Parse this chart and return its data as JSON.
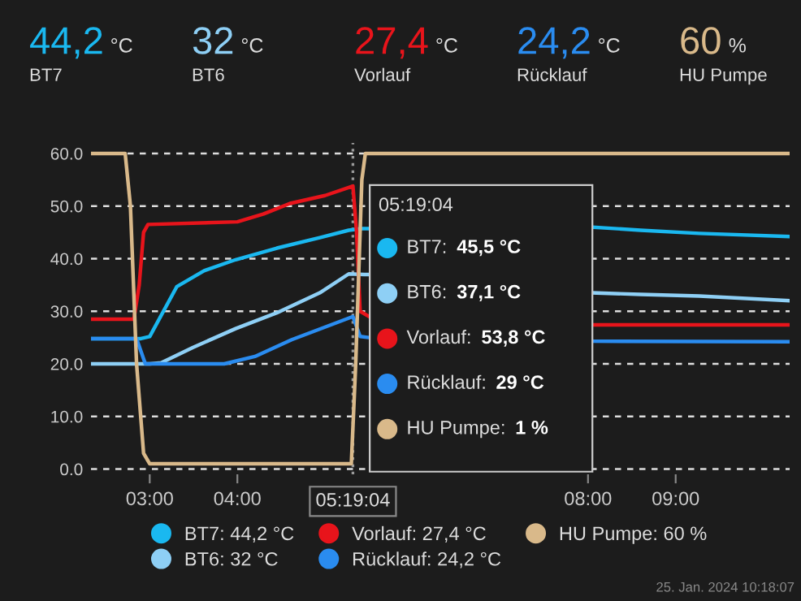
{
  "chart_data": {
    "type": "line",
    "series": [
      {
        "name": "BT7: 44,2 °C",
        "color": "#1ab8f0",
        "x": [
          2.33,
          2.9,
          3.0,
          3.31,
          3.62,
          3.98,
          4.45,
          4.94,
          5.27,
          5.42,
          5.5,
          6.8,
          8.05,
          8.6,
          9.27,
          10.3
        ],
        "values": [
          24.8,
          24.8,
          25.2,
          34.7,
          37.7,
          39.8,
          42,
          44,
          45.4,
          45.7,
          45.7,
          null,
          46,
          45.4,
          44.8,
          44.2
        ]
      },
      {
        "name": "BT6: 32 °C",
        "color": "#8ecff5",
        "x": [
          2.33,
          3.0,
          3.13,
          3.49,
          3.98,
          4.45,
          4.94,
          5.27,
          5.45,
          5.5,
          6.8,
          8.05,
          8.6,
          9.27,
          10.3
        ],
        "values": [
          20,
          20,
          20.2,
          23.1,
          26.7,
          29.7,
          33.5,
          37.1,
          37,
          37,
          null,
          33.5,
          33.2,
          32.9,
          32
        ]
      },
      {
        "name": "Vorlauf: 27,4 °C",
        "color": "#e8141b",
        "x": [
          2.33,
          2.82,
          2.88,
          2.93,
          2.98,
          4.0,
          4.3,
          4.6,
          5.0,
          5.318,
          5.36,
          5.4,
          5.5,
          6.8,
          8.05,
          10.3
        ],
        "values": [
          28.5,
          28.5,
          35,
          45,
          46.5,
          47,
          48.5,
          50.5,
          52,
          53.8,
          45,
          30,
          29,
          null,
          27.4,
          27.4
        ]
      },
      {
        "name": "Rücklauf: 24,2 °C",
        "color": "#2a8cf0",
        "x": [
          2.33,
          2.85,
          2.95,
          3.85,
          4.2,
          4.62,
          5.318,
          5.4,
          5.5,
          6.8,
          8.05,
          10.3
        ],
        "values": [
          24.8,
          24.8,
          20,
          20,
          21.4,
          24.6,
          29,
          25.2,
          25,
          null,
          24.3,
          24.2
        ]
      },
      {
        "name": "HU Pumpe: 60 %",
        "color": "#d9b98a",
        "x": [
          2.33,
          2.72,
          2.78,
          2.85,
          2.93,
          3.0,
          5.3,
          5.35,
          5.42,
          5.46,
          10.3
        ],
        "values": [
          60,
          60,
          50,
          20,
          3,
          1,
          1,
          20,
          55,
          60,
          60
        ]
      }
    ],
    "xlim": [
      2.33,
      10.3
    ],
    "xticks": [
      {
        "value": 3,
        "label": "03:00"
      },
      {
        "value": 4,
        "label": "04:00"
      },
      {
        "value": 8,
        "label": "08:00"
      },
      {
        "value": 9,
        "label": "09:00"
      }
    ],
    "ylim": [
      -1,
      62
    ],
    "yticks": [
      {
        "value": 0,
        "label": "0.0"
      },
      {
        "value": 10,
        "label": "10.0"
      },
      {
        "value": 20,
        "label": "20.0"
      },
      {
        "value": 30,
        "label": "30.0"
      },
      {
        "value": 40,
        "label": "40.0"
      },
      {
        "value": 50,
        "label": "50.0"
      },
      {
        "value": 60,
        "label": "60.0"
      }
    ],
    "ref_lines": [
      {
        "axis": "x",
        "value": 5.318,
        "label": "05:19:04",
        "line_style": "dotted"
      }
    ],
    "grid": "y",
    "legend": "bottom",
    "marker": "none",
    "line_style": "solid",
    "annotations": [
      "44,2 °C",
      "BT7",
      "32 °C",
      "BT6",
      "27,4 °C",
      "Vorlauf",
      "24,2 °C",
      "Rücklauf",
      "60 %",
      "HU Pumpe",
      "05:19:04",
      "BT7: 45,5 °C",
      "BT6: 37,1 °C",
      "Vorlauf: 53,8 °C",
      "Rücklauf: 29 °C",
      "HU Pumpe: 1 %",
      "25. Jan. 2024 10:18:07"
    ]
  }
}
